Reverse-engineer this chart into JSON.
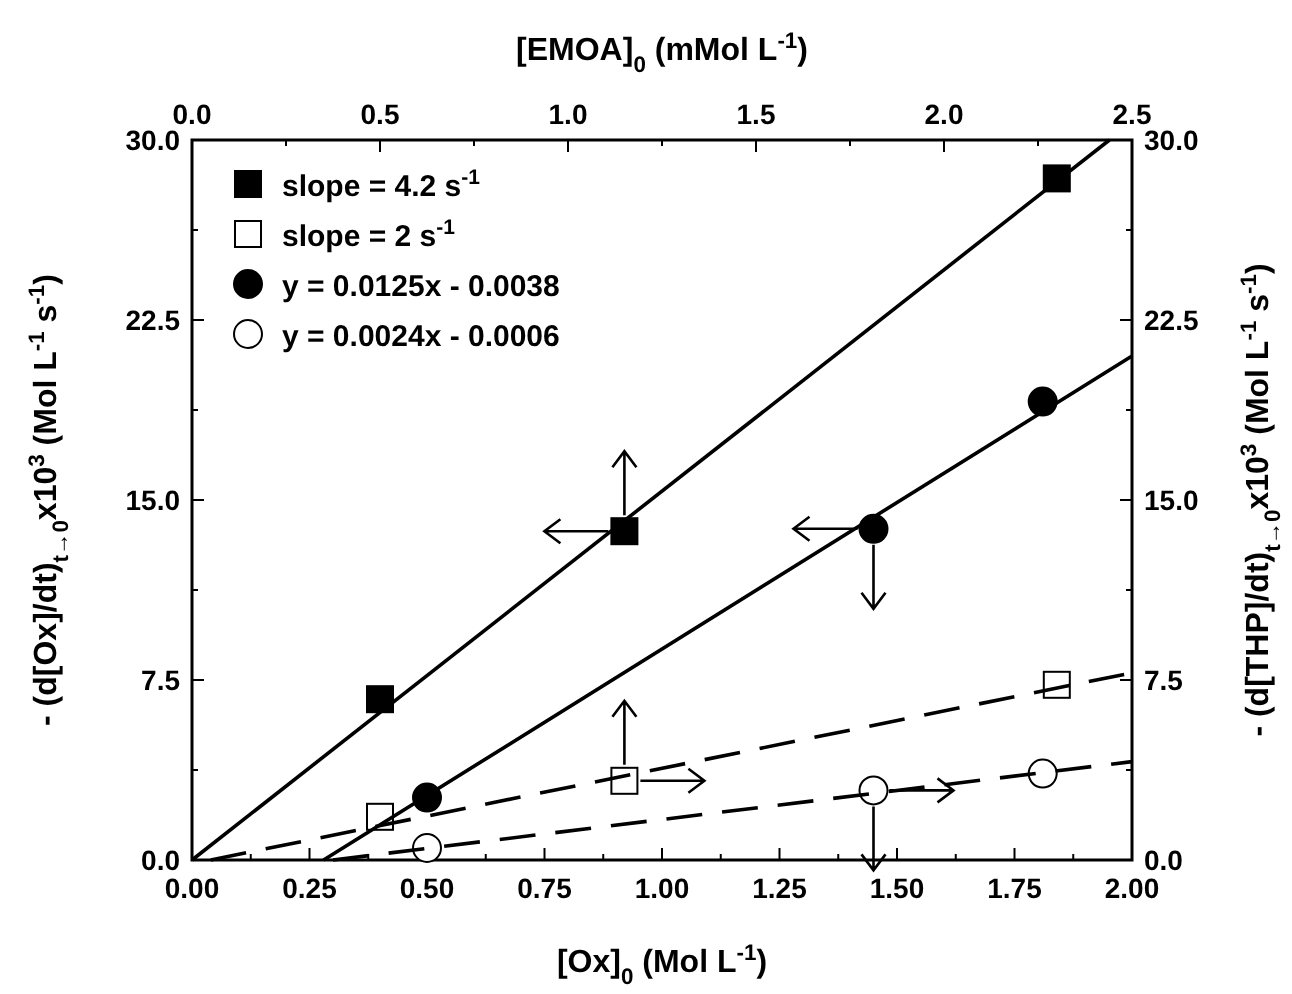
{
  "chart_data": {
    "type": "scatter",
    "xlabel": "[Ox]$_{0}$   (Mol L$^{-1}$)",
    "x2label": "[EMOA]$_{0}$   (mMol L$^{-1}$)",
    "ylabel": "- (d[Ox]/dt)$_{t→0}$x10$^{3}$  (Mol L$^{-1}$ s$^{-1}$)",
    "y2label": "- (d[THP]/dt)$_{t→0}$x10$^{3}$  (Mol L$^{-1}$ s$^{-1}$)",
    "xlim": [
      0,
      2
    ],
    "xticks": [
      {
        "value": 0,
        "label": "0.00"
      },
      {
        "value": 0.125,
        "label": null
      },
      0.25,
      {
        "value": 0.375,
        "label": null
      },
      {
        "value": 0.5,
        "label": "0.50"
      },
      {
        "value": 0.625,
        "label": null
      },
      0.75,
      {
        "value": 0.875,
        "label": null
      },
      {
        "value": 1,
        "label": "1.00"
      },
      {
        "value": 1.125,
        "label": null
      },
      1.25,
      {
        "value": 1.375,
        "label": null
      },
      {
        "value": 1.5,
        "label": "1.50"
      },
      {
        "value": 1.625,
        "label": null
      },
      1.75,
      {
        "value": 1.875,
        "label": null
      },
      {
        "value": 2,
        "label": "2.00"
      }
    ],
    "x2lim": [
      0,
      2.5
    ],
    "x2ticks": [
      {
        "value": 0,
        "label": "0.0"
      },
      {
        "value": 0.25,
        "label": null
      },
      0.5,
      {
        "value": 0.75,
        "label": null
      },
      {
        "value": 1,
        "label": "1.0"
      },
      {
        "value": 1.25,
        "label": null
      },
      1.5,
      {
        "value": 1.75,
        "label": null
      },
      {
        "value": 2,
        "label": "2.0"
      },
      {
        "value": 2.25,
        "label": null
      },
      2.5
    ],
    "ylim": [
      0,
      30
    ],
    "yticks": [
      {
        "value": 0,
        "label": "0.0"
      },
      {
        "value": 3.75,
        "label": null
      },
      7.5,
      {
        "value": 11.25,
        "label": null
      },
      {
        "value": 15,
        "label": "15.0"
      },
      {
        "value": 18.75,
        "label": null
      },
      22.5,
      {
        "value": 26.25,
        "label": null
      },
      {
        "value": 30,
        "label": "30.0"
      }
    ],
    "y2lim": [
      0,
      30
    ],
    "y2ticks": [
      {
        "value": 0,
        "label": "0.0"
      },
      {
        "value": 3.75,
        "label": null
      },
      7.5,
      {
        "value": 11.25,
        "label": null
      },
      {
        "value": 15,
        "label": "15.0"
      },
      {
        "value": 18.75,
        "label": null
      },
      22.5,
      {
        "value": 26.25,
        "label": null
      },
      {
        "value": 30,
        "label": "30.0"
      }
    ],
    "grid": false,
    "legend": "top left",
    "series": [
      {
        "name": "slope = 4.2 s$^{-1}$",
        "color": "#000000",
        "marker": "square",
        "axis": "x2",
        "x": [
          0.5,
          1.15,
          2.3
        ],
        "values": [
          6.7,
          13.7,
          28.4
        ]
      },
      {
        "name": "slope = 2 s$^{-1}$",
        "color": "#ffffff",
        "marker": "square",
        "axis": "x2",
        "x": [
          0.5,
          1.15,
          2.3
        ],
        "values": [
          1.8,
          3.3,
          7.3
        ]
      },
      {
        "name": "y = 0.0125x - 0.0038",
        "color": "#000000",
        "marker": "circle",
        "x": [
          0.5,
          1.45,
          1.81
        ],
        "values": [
          2.6,
          13.8,
          19.1
        ]
      },
      {
        "name": "y = 0.0024x - 0.0006",
        "color": "#ffffff",
        "marker": "circle",
        "axis": "y2",
        "x": [
          0.5,
          1.45,
          1.81
        ],
        "values": [
          0.5,
          2.9,
          3.6
        ]
      },
      {
        "type": "line",
        "color": "#000000",
        "line_style": "solid",
        "marker": "none",
        "axis": "x2",
        "x": [
          0,
          2.44
        ],
        "values": [
          0,
          30
        ]
      },
      {
        "type": "line",
        "color": "#000000",
        "line_style": "dashed",
        "marker": "none",
        "axis": "x2",
        "x": [
          0.05,
          2.5
        ],
        "values": [
          0,
          7.8
        ]
      },
      {
        "type": "line",
        "color": "#000000",
        "line_style": "solid",
        "marker": "none",
        "x": [
          0.28,
          2
        ],
        "values": [
          0,
          21.0
        ]
      },
      {
        "type": "line",
        "color": "#000000",
        "line_style": "dashed",
        "marker": "none",
        "axis": "y2",
        "x": [
          0.3,
          2
        ],
        "values": [
          0,
          4.1
        ]
      }
    ]
  }
}
